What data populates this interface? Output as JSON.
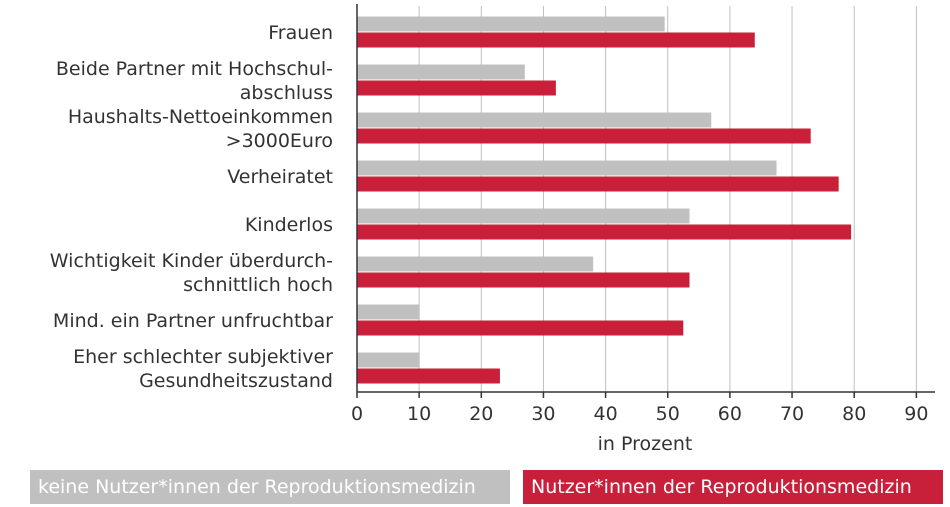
{
  "chart_data": {
    "type": "bar",
    "orientation": "horizontal",
    "categories": [
      [
        "Frauen"
      ],
      [
        "Beide Partner mit Hochschul-",
        "abschluss"
      ],
      [
        "Haushalts-Nettoeinkommen",
        ">3000Euro"
      ],
      [
        "Verheiratet"
      ],
      [
        "Kinderlos"
      ],
      [
        "Wichtigkeit Kinder überdurch-",
        "schnittlich hoch"
      ],
      [
        "Mind. ein Partner unfruchtbar"
      ],
      [
        "Eher schlechter subjektiver",
        "Gesundheitszustand"
      ]
    ],
    "series": [
      {
        "name": "keine Nutzer*innen der Reproduktionsmedizin",
        "color": "#c0c0c0",
        "values": [
          49.5,
          27,
          57,
          67.5,
          53.5,
          38,
          10,
          10
        ]
      },
      {
        "name": "Nutzer*innen der Reproduktionsmedizin",
        "color": "#c8203a",
        "values": [
          64,
          32,
          73,
          77.5,
          79.5,
          53.5,
          52.5,
          23
        ]
      }
    ],
    "xlim": [
      0,
      93
    ],
    "xticks": [
      0,
      10,
      20,
      30,
      40,
      50,
      60,
      70,
      80,
      90
    ],
    "xlabel": "in  Prozent",
    "ylabel": "",
    "title": "",
    "grid": "vertical",
    "legend": "bottom"
  }
}
